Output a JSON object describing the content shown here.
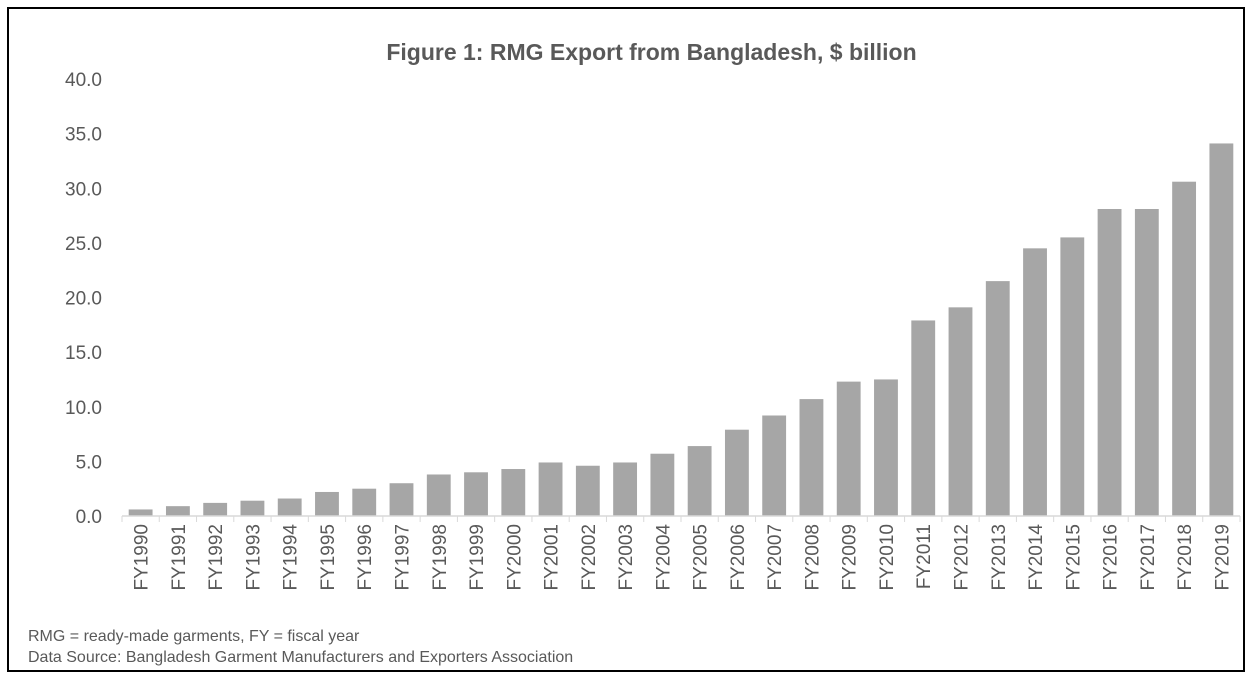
{
  "chart_data": {
    "type": "bar",
    "title": "Figure 1: RMG Export from Bangladesh, $ billion",
    "xlabel": "",
    "ylabel": "",
    "ylim": [
      0,
      40
    ],
    "yticks": [
      "0.0",
      "5.0",
      "10.0",
      "15.0",
      "20.0",
      "25.0",
      "30.0",
      "35.0",
      "40.0"
    ],
    "grid": false,
    "bar_color": "#a6a6a6",
    "categories": [
      "FY1990",
      "FY1991",
      "FY1992",
      "FY1993",
      "FY1994",
      "FY1995",
      "FY1996",
      "FY1997",
      "FY1998",
      "FY1999",
      "FY2000",
      "FY2001",
      "FY2002",
      "FY2003",
      "FY2004",
      "FY2005",
      "FY2006",
      "FY2007",
      "FY2008",
      "FY2009",
      "FY2010",
      "FY2011",
      "FY2012",
      "FY2013",
      "FY2014",
      "FY2015",
      "FY2016",
      "FY2017",
      "FY2018",
      "FY2019"
    ],
    "values": [
      0.6,
      0.9,
      1.2,
      1.4,
      1.6,
      2.2,
      2.5,
      3.0,
      3.8,
      4.0,
      4.3,
      4.9,
      4.6,
      4.9,
      5.7,
      6.4,
      7.9,
      9.2,
      10.7,
      12.3,
      12.5,
      17.9,
      19.1,
      21.5,
      24.5,
      25.5,
      28.1,
      28.1,
      30.6,
      34.1
    ]
  },
  "footnotes": {
    "abbrev": "RMG  = ready-made garments,  FY = fiscal year",
    "source": "Data Source: Bangladesh  Garment  Manufacturers  and  Exporters  Association"
  }
}
